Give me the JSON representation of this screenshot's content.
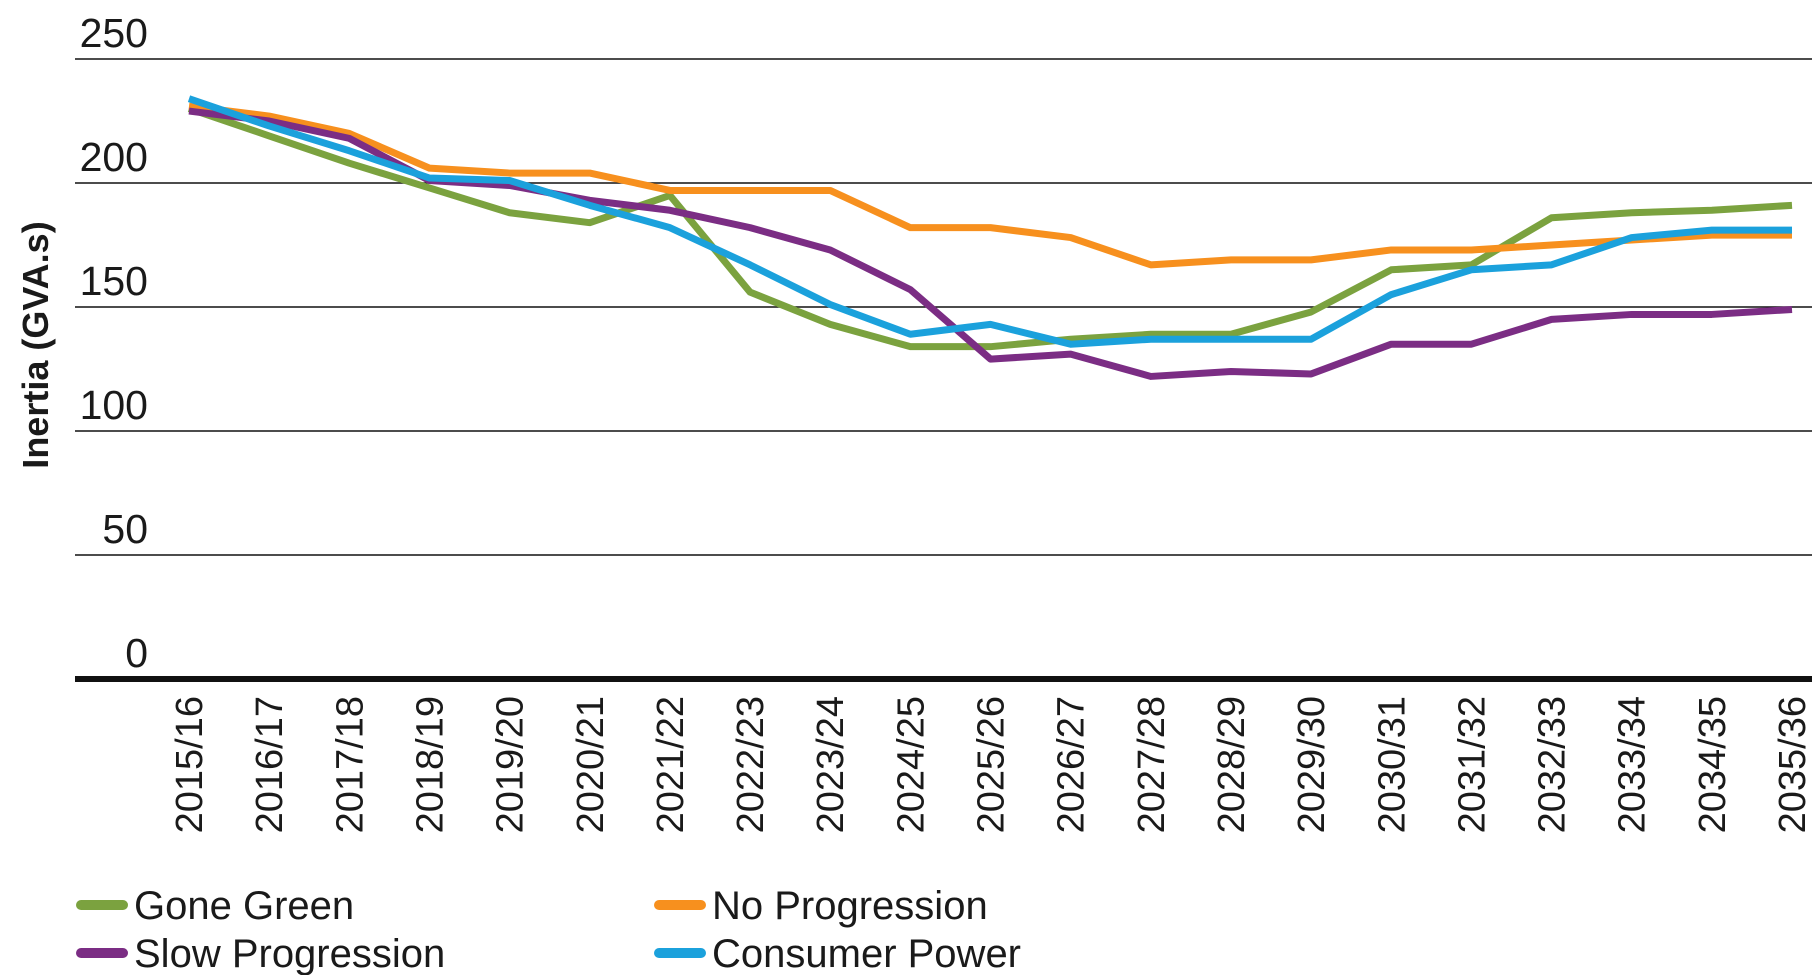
{
  "chart_data": {
    "type": "line",
    "y_label": "Inertia (GVA.s)",
    "categories": [
      "2015/16",
      "2016/17",
      "2017/18",
      "2018/19",
      "2019/20",
      "2020/21",
      "2021/22",
      "2022/23",
      "2023/24",
      "2024/25",
      "2025/26",
      "2026/27",
      "2027/28",
      "2028/29",
      "2029/30",
      "2030/31",
      "2031/32",
      "2032/33",
      "2033/34",
      "2034/35",
      "2035/36"
    ],
    "series": [
      {
        "name": "Gone Green",
        "color": "#7ba23f",
        "values": [
          230,
          219,
          208,
          198,
          188,
          184,
          195,
          156,
          143,
          134,
          134,
          137,
          139,
          139,
          148,
          165,
          167,
          186,
          188,
          189,
          191
        ]
      },
      {
        "name": "No Progression",
        "color": "#f7901e",
        "values": [
          231,
          227,
          220,
          206,
          204,
          204,
          197,
          197,
          197,
          182,
          182,
          178,
          167,
          169,
          169,
          173,
          173,
          175,
          177,
          179,
          179
        ]
      },
      {
        "name": "Slow Progression",
        "color": "#7b2d84",
        "values": [
          229,
          225,
          218,
          201,
          199,
          193,
          189,
          182,
          173,
          157,
          129,
          131,
          122,
          124,
          123,
          135,
          135,
          145,
          147,
          147,
          149
        ]
      },
      {
        "name": "Consumer Power",
        "color": "#1ba1dc",
        "values": [
          234,
          223,
          213,
          202,
          201,
          191,
          182,
          167,
          151,
          139,
          143,
          135,
          137,
          137,
          137,
          155,
          165,
          167,
          178,
          181,
          181
        ]
      }
    ],
    "ylim": [
      0,
      250
    ],
    "yticks": [
      0,
      50,
      100,
      150,
      200,
      250
    ],
    "grid": true
  }
}
